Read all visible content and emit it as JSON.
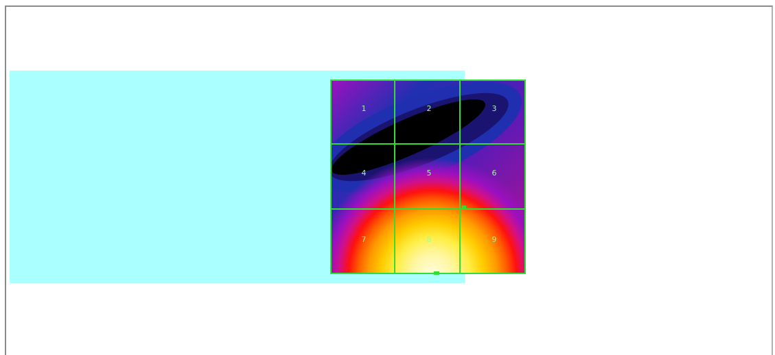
{
  "grid": {
    "cells": [
      {
        "label": "1"
      },
      {
        "label": "2"
      },
      {
        "label": "3"
      },
      {
        "label": "4"
      },
      {
        "label": "5"
      },
      {
        "label": "6"
      },
      {
        "label": "7"
      },
      {
        "label": "8"
      },
      {
        "label": "9"
      }
    ],
    "line_color": "#33dd33"
  },
  "colors": {
    "panel_background": "#aaffff",
    "frame_border": "#8a8a8a",
    "heatmap_ramp": [
      "#000000",
      "#1a1470",
      "#1f2fb0",
      "#5a1ab8",
      "#9a10c0",
      "#d0108a",
      "#ff1010",
      "#ff5a00",
      "#ff9a00",
      "#ffcc00",
      "#ffee44",
      "#fff6a0",
      "#fffde0"
    ]
  }
}
